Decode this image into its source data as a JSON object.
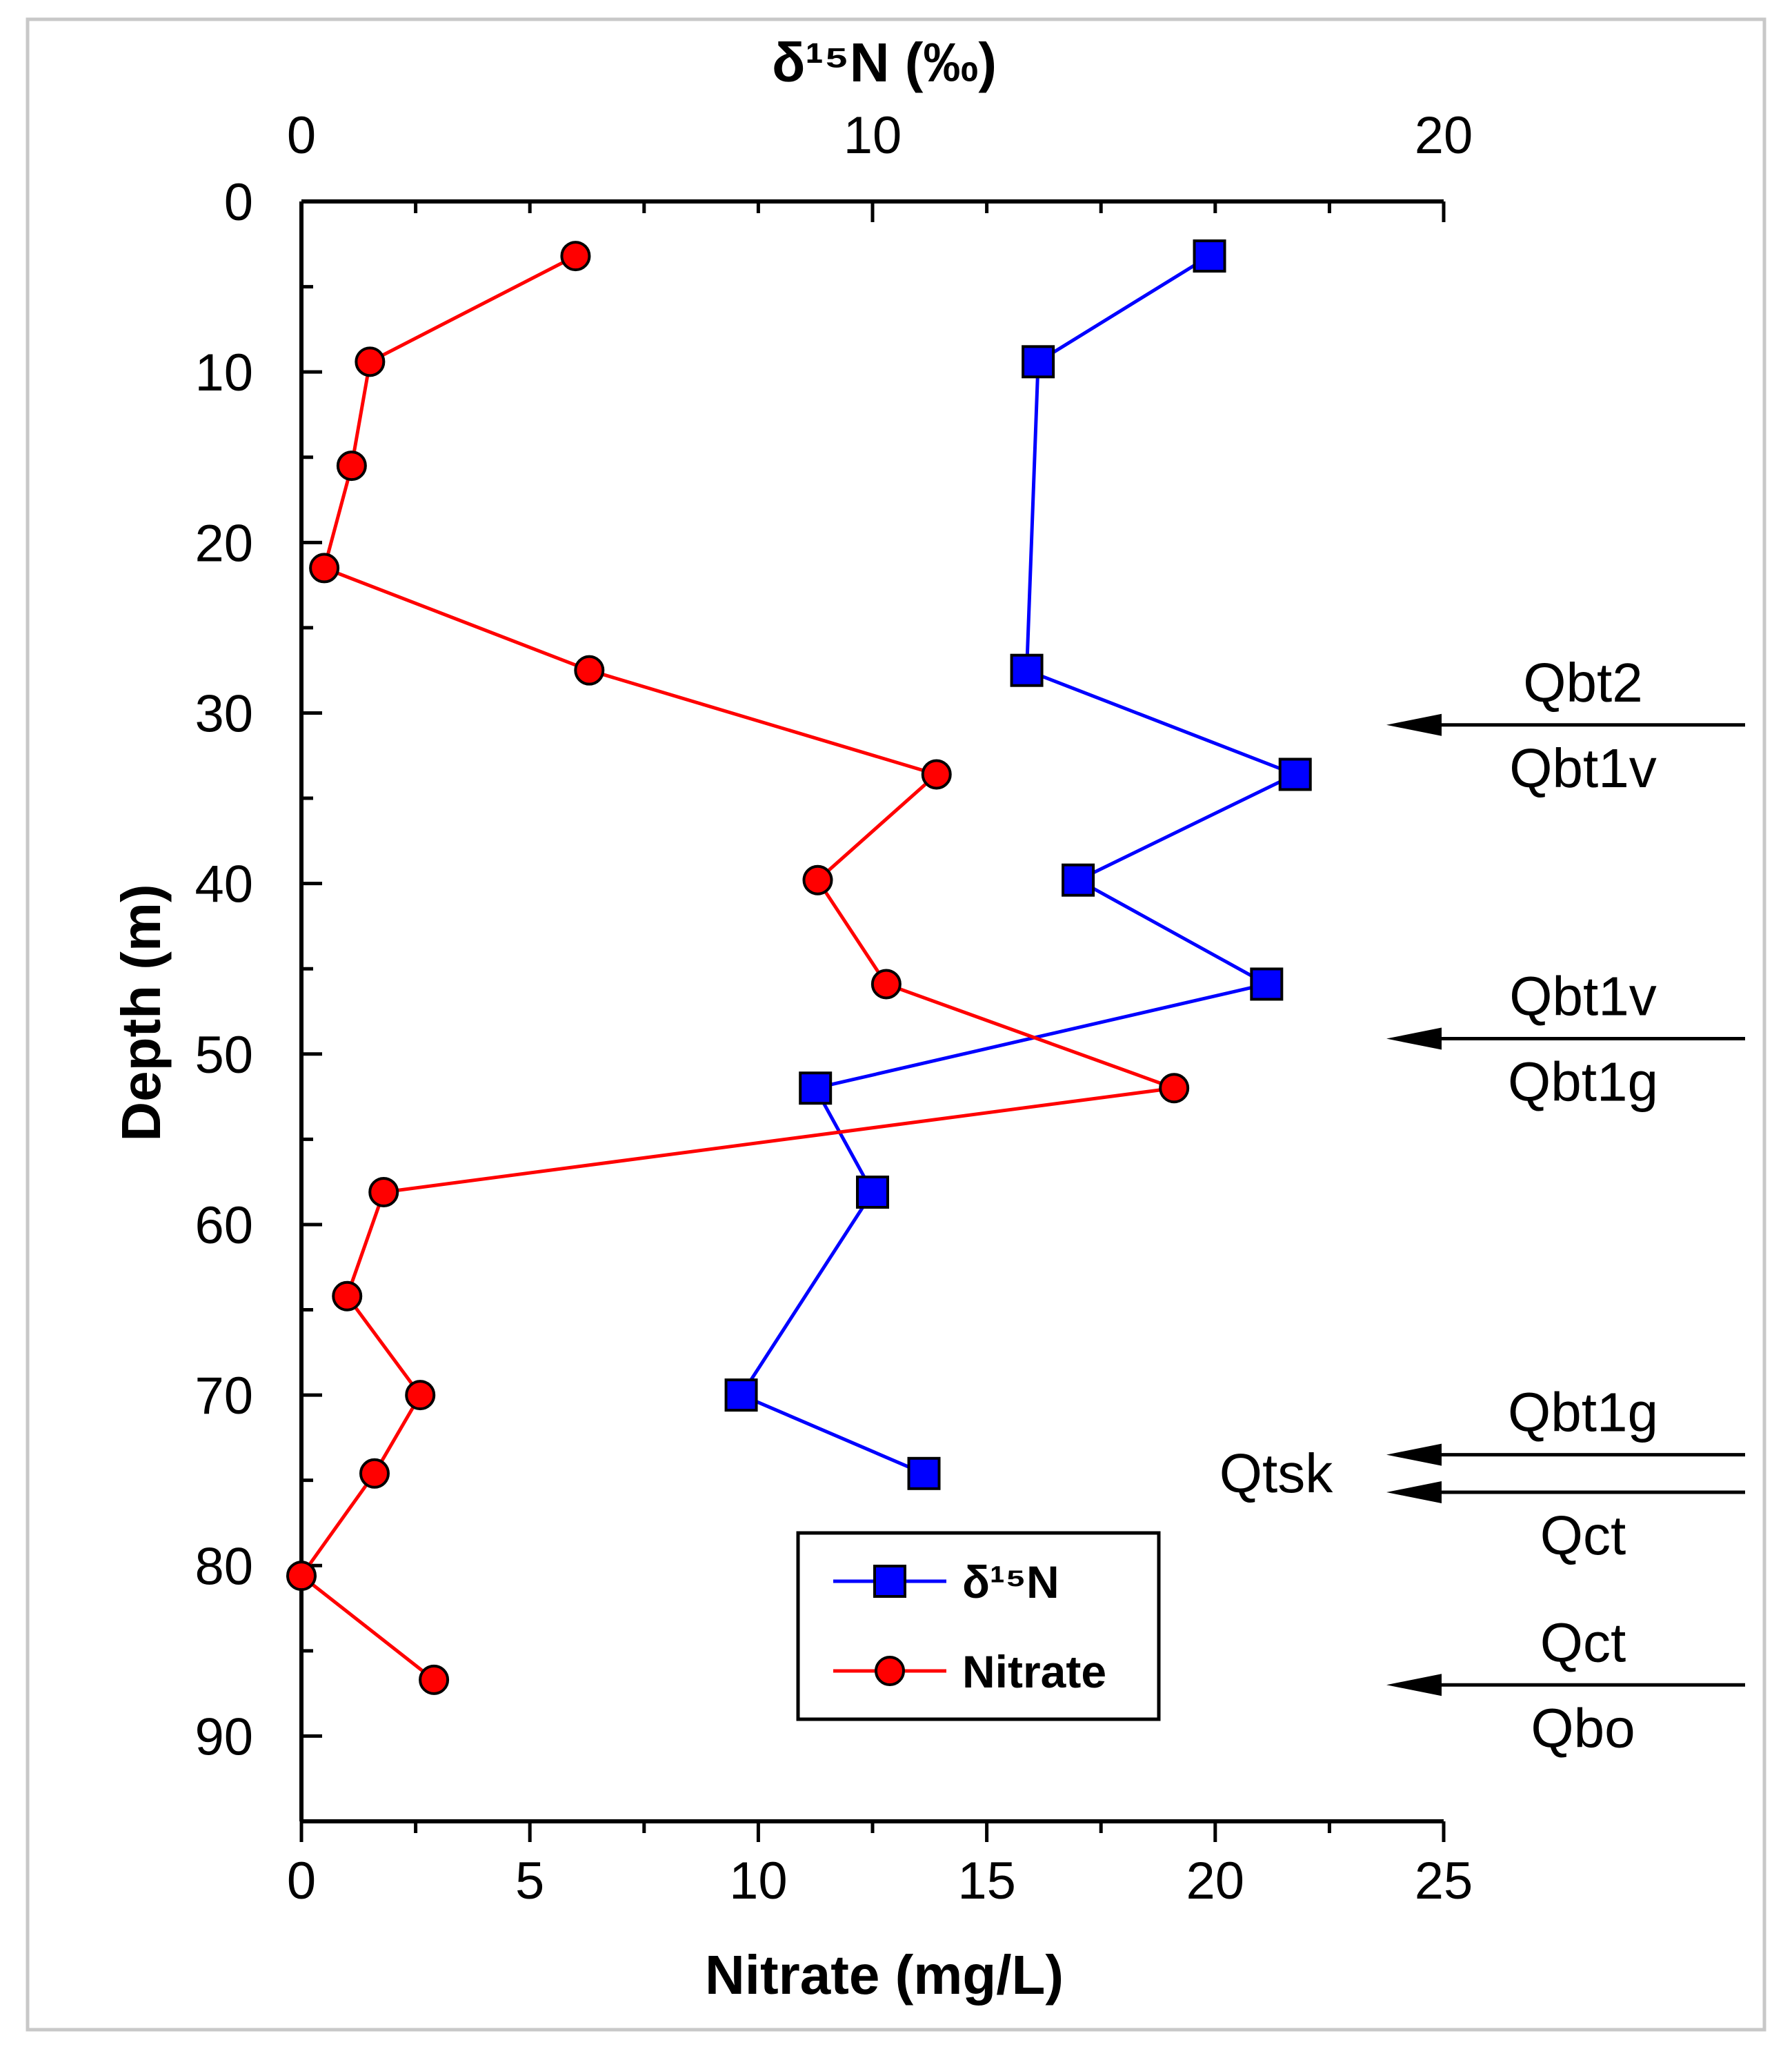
{
  "chart_data": {
    "type": "scatter",
    "title": "",
    "axes": {
      "top": {
        "label": "δ¹⁵N (‰)",
        "range": [
          0,
          20
        ],
        "major_ticks": [
          0,
          10,
          20
        ],
        "minor_step": 2
      },
      "bottom": {
        "label": "Nitrate (mg/L)",
        "range": [
          0,
          25
        ],
        "major_ticks": [
          0,
          5,
          10,
          15,
          20,
          25
        ],
        "minor_step": 2.5
      },
      "left": {
        "label": "Depth (m)",
        "range": [
          0,
          95
        ],
        "inverted": true,
        "major_ticks": [
          0,
          10,
          20,
          30,
          40,
          50,
          60,
          70,
          80,
          90
        ],
        "minor_step": 5
      }
    },
    "grid": false,
    "legend": {
      "placement": "bottom-center",
      "entries": [
        "δ¹⁵N",
        "Nitrate"
      ]
    },
    "series": [
      {
        "name": "δ¹⁵N",
        "axis": "top",
        "color": "#0000ff",
        "marker": "square",
        "points": [
          {
            "value": 15.9,
            "depth": 3.2
          },
          {
            "value": 12.9,
            "depth": 9.4
          },
          {
            "value": 12.7,
            "depth": 27.5
          },
          {
            "value": 17.4,
            "depth": 33.6
          },
          {
            "value": 13.6,
            "depth": 39.8
          },
          {
            "value": 16.9,
            "depth": 45.9
          },
          {
            "value": 9.0,
            "depth": 52.0
          },
          {
            "value": 10.0,
            "depth": 58.1
          },
          {
            "value": 7.7,
            "depth": 70.0
          },
          {
            "value": 10.9,
            "depth": 74.6
          }
        ]
      },
      {
        "name": "Nitrate",
        "axis": "bottom",
        "color": "#ff0000",
        "marker": "circle",
        "points": [
          {
            "value": 6.0,
            "depth": 3.2
          },
          {
            "value": 1.5,
            "depth": 9.4
          },
          {
            "value": 1.1,
            "depth": 15.5
          },
          {
            "value": 0.5,
            "depth": 21.5
          },
          {
            "value": 6.3,
            "depth": 27.5
          },
          {
            "value": 13.9,
            "depth": 33.6
          },
          {
            "value": 11.3,
            "depth": 39.8
          },
          {
            "value": 12.8,
            "depth": 45.9
          },
          {
            "value": 19.1,
            "depth": 52.0
          },
          {
            "value": 1.8,
            "depth": 58.1
          },
          {
            "value": 1.0,
            "depth": 64.2
          },
          {
            "value": 2.6,
            "depth": 70.0
          },
          {
            "value": 1.6,
            "depth": 74.6
          },
          {
            "value": 0.0,
            "depth": 80.6
          },
          {
            "value": 2.9,
            "depth": 86.7
          }
        ]
      }
    ],
    "annotations": [
      {
        "upper": "Qbt2",
        "lower": "Qbt1v",
        "depth": 30.7
      },
      {
        "upper": "Qbt1v",
        "lower": "Qbt1g",
        "depth": 49.1
      },
      {
        "upper": "Qbt1g",
        "lower": "",
        "depth": 73.5
      },
      {
        "upper": "",
        "lower": "Qct",
        "depth": 75.7
      },
      {
        "upper": "Qct",
        "lower": "Qbo",
        "depth": 87.0
      }
    ],
    "side_label": {
      "text": "Qtsk",
      "depth": 74.6
    }
  }
}
